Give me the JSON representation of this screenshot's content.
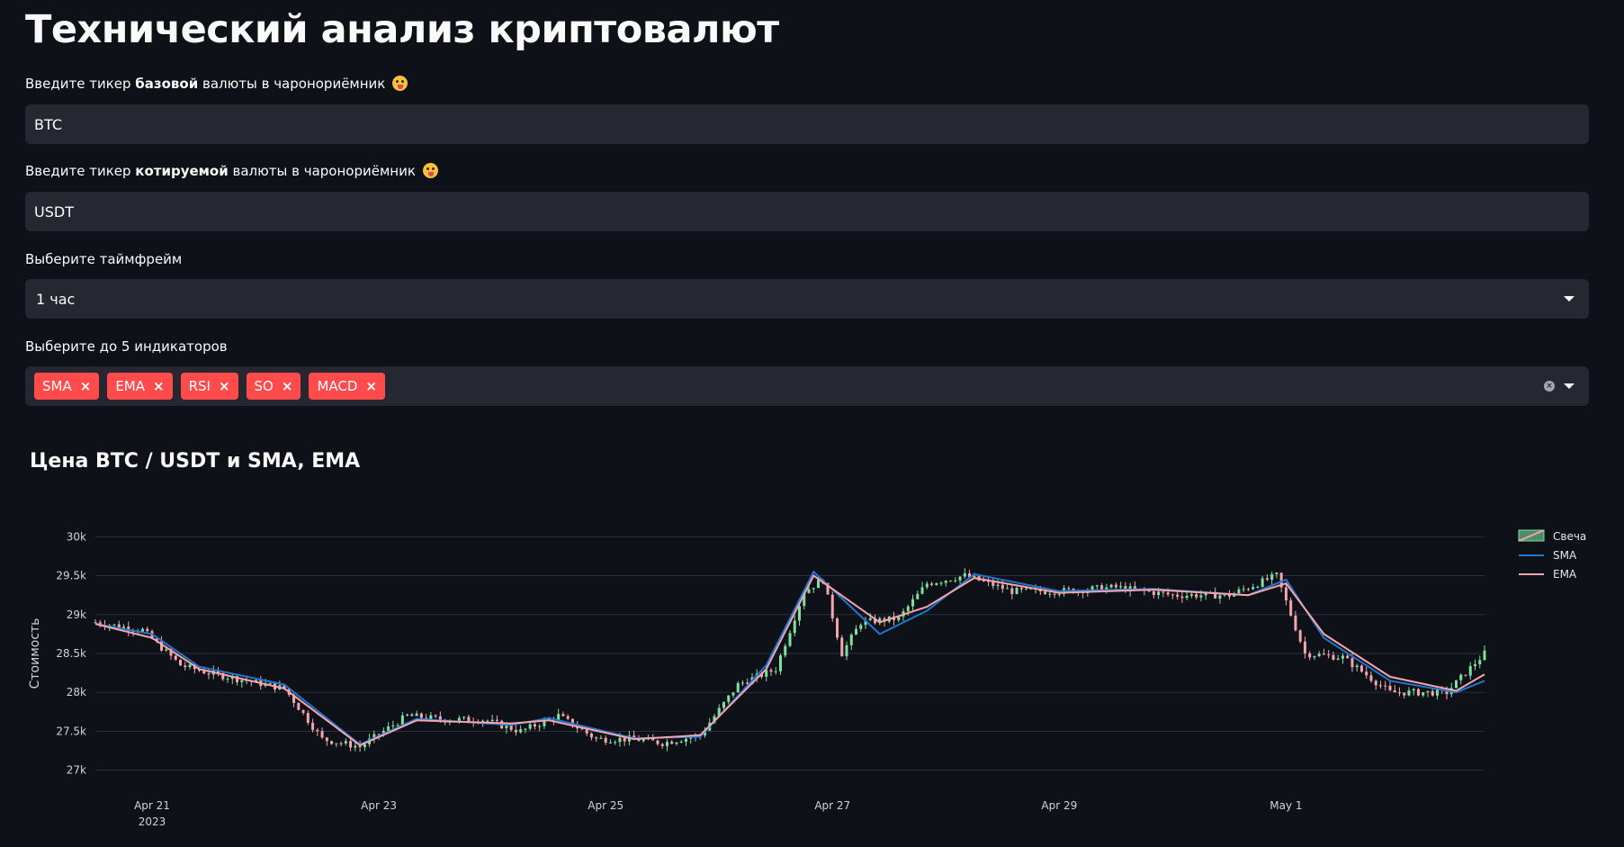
{
  "page": {
    "title": "Технический анализ криптовалют"
  },
  "form": {
    "base": {
      "label_pre": "Введите тикер ",
      "label_bold": "базовой",
      "label_post": " валюты в чаронориёмник",
      "value": "BTC",
      "emoji": "face-with-tongue"
    },
    "quote": {
      "label_pre": "Введите тикер ",
      "label_bold": "котируемой",
      "label_post": " валюты в чаронориёмник",
      "value": "USDT",
      "emoji": "face-with-tongue"
    },
    "timeframe": {
      "label": "Выберите таймфрейм",
      "value": "1 час"
    },
    "indicators": {
      "label": "Выберите до 5 индикаторов",
      "selected": [
        "SMA",
        "EMA",
        "RSI",
        "SO",
        "MACD"
      ],
      "remove_glyph": "×"
    }
  },
  "colors": {
    "background": "#0e1117",
    "input_bg": "#262730",
    "tag_red": "#ff4b4b",
    "candle_up": "#7fe0a0",
    "candle_down": "#f4a6ac",
    "sma": "#1f77d4",
    "ema": "#f7a5ac"
  },
  "chart_data": {
    "type": "candlestick",
    "title": "Цена BTC / USDT и SMA, EMA",
    "ylabel": "Стоимость",
    "xlabel": "",
    "ylim": [
      26950,
      30050
    ],
    "xlim": [
      "2023-04-20T12:00",
      "2023-05-02T18:00"
    ],
    "y_ticks": [
      "27k",
      "27.5k",
      "28k",
      "28.5k",
      "29k",
      "29.5k",
      "30k"
    ],
    "x_ticks": [
      {
        "date": "2023-04-21",
        "label": "Apr 21",
        "sublabel": "2023"
      },
      {
        "date": "2023-04-23",
        "label": "Apr 23",
        "sublabel": ""
      },
      {
        "date": "2023-04-25",
        "label": "Apr 25",
        "sublabel": ""
      },
      {
        "date": "2023-04-27",
        "label": "Apr 27",
        "sublabel": ""
      },
      {
        "date": "2023-04-29",
        "label": "Apr 29",
        "sublabel": ""
      },
      {
        "date": "2023-05-01",
        "label": "May 1",
        "sublabel": ""
      }
    ],
    "grid": true,
    "legend_position": "top-right",
    "legend": [
      "Свеча",
      "SMA",
      "EMA"
    ],
    "price_path": [
      [
        "2023-04-20T12:00",
        28900
      ],
      [
        "2023-04-20T22:00",
        28800
      ],
      [
        "2023-04-21T06:00",
        28350
      ],
      [
        "2023-04-21T12:00",
        28250
      ],
      [
        "2023-04-21T20:00",
        28150
      ],
      [
        "2023-04-22T04:00",
        28050
      ],
      [
        "2023-04-22T12:00",
        27400
      ],
      [
        "2023-04-22T20:00",
        27300
      ],
      [
        "2023-04-23T06:00",
        27700
      ],
      [
        "2023-04-23T14:00",
        27650
      ],
      [
        "2023-04-23T22:00",
        27650
      ],
      [
        "2023-04-24T06:00",
        27500
      ],
      [
        "2023-04-24T14:00",
        27700
      ],
      [
        "2023-04-24T22:00",
        27400
      ],
      [
        "2023-04-25T06:00",
        27400
      ],
      [
        "2023-04-25T12:00",
        27350
      ],
      [
        "2023-04-25T20:00",
        27450
      ],
      [
        "2023-04-26T04:00",
        28100
      ],
      [
        "2023-04-26T12:00",
        28300
      ],
      [
        "2023-04-26T18:00",
        29300
      ],
      [
        "2023-04-26T22:00",
        29450
      ],
      [
        "2023-04-27T02:00",
        28500
      ],
      [
        "2023-04-27T06:00",
        28900
      ],
      [
        "2023-04-27T14:00",
        28950
      ],
      [
        "2023-04-27T20:00",
        29400
      ],
      [
        "2023-04-28T04:00",
        29500
      ],
      [
        "2023-04-28T14:00",
        29300
      ],
      [
        "2023-04-29T00:00",
        29300
      ],
      [
        "2023-04-29T12:00",
        29350
      ],
      [
        "2023-04-30T00:00",
        29250
      ],
      [
        "2023-04-30T12:00",
        29250
      ],
      [
        "2023-04-30T22:00",
        29500
      ],
      [
        "2023-05-01T04:00",
        28500
      ],
      [
        "2023-05-01T12:00",
        28450
      ],
      [
        "2023-05-01T22:00",
        28000
      ],
      [
        "2023-05-02T10:00",
        28000
      ],
      [
        "2023-05-02T18:00",
        28500
      ]
    ],
    "series": [
      {
        "name": "SMA",
        "values": [
          [
            "2023-04-20T12:00",
            28880
          ],
          [
            "2023-04-21T00:00",
            28750
          ],
          [
            "2023-04-21T10:00",
            28330
          ],
          [
            "2023-04-22T04:00",
            28100
          ],
          [
            "2023-04-22T20:00",
            27330
          ],
          [
            "2023-04-23T08:00",
            27660
          ],
          [
            "2023-04-24T04:00",
            27580
          ],
          [
            "2023-04-24T12:00",
            27670
          ],
          [
            "2023-04-25T06:00",
            27410
          ],
          [
            "2023-04-25T20:00",
            27430
          ],
          [
            "2023-04-26T10:00",
            28350
          ],
          [
            "2023-04-26T20:00",
            29550
          ],
          [
            "2023-04-27T10:00",
            28750
          ],
          [
            "2023-04-27T20:00",
            29050
          ],
          [
            "2023-04-28T06:00",
            29520
          ],
          [
            "2023-04-29T00:00",
            29300
          ],
          [
            "2023-04-29T20:00",
            29330
          ],
          [
            "2023-04-30T16:00",
            29250
          ],
          [
            "2023-05-01T00:00",
            29450
          ],
          [
            "2023-05-01T08:00",
            28700
          ],
          [
            "2023-05-01T22:00",
            28150
          ],
          [
            "2023-05-02T12:00",
            28000
          ],
          [
            "2023-05-02T18:00",
            28150
          ]
        ]
      },
      {
        "name": "EMA",
        "values": [
          [
            "2023-04-20T12:00",
            28880
          ],
          [
            "2023-04-21T00:00",
            28700
          ],
          [
            "2023-04-21T10:00",
            28300
          ],
          [
            "2023-04-22T04:00",
            28050
          ],
          [
            "2023-04-22T20:00",
            27320
          ],
          [
            "2023-04-23T08:00",
            27640
          ],
          [
            "2023-04-24T04:00",
            27600
          ],
          [
            "2023-04-24T12:00",
            27640
          ],
          [
            "2023-04-25T06:00",
            27400
          ],
          [
            "2023-04-25T20:00",
            27450
          ],
          [
            "2023-04-26T10:00",
            28300
          ],
          [
            "2023-04-26T20:00",
            29500
          ],
          [
            "2023-04-27T10:00",
            28900
          ],
          [
            "2023-04-27T20:00",
            29100
          ],
          [
            "2023-04-28T06:00",
            29470
          ],
          [
            "2023-04-29T00:00",
            29280
          ],
          [
            "2023-04-29T20:00",
            29320
          ],
          [
            "2023-04-30T16:00",
            29250
          ],
          [
            "2023-05-01T00:00",
            29400
          ],
          [
            "2023-05-01T08:00",
            28750
          ],
          [
            "2023-05-01T22:00",
            28200
          ],
          [
            "2023-05-02T12:00",
            28020
          ],
          [
            "2023-05-02T18:00",
            28230
          ]
        ]
      }
    ]
  }
}
